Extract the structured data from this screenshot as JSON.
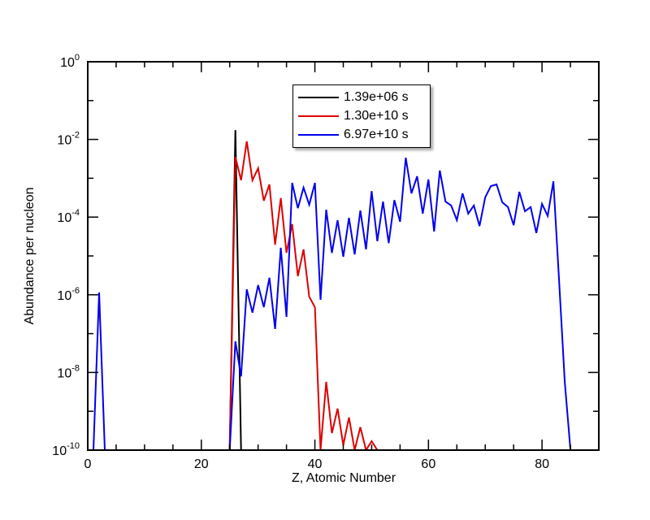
{
  "chart_data": {
    "type": "line",
    "title": "",
    "xlabel": "Z, Atomic Number",
    "ylabel": "Abundance per nucleon",
    "xlim": [
      0,
      90
    ],
    "ylim_log10": [
      -10,
      0
    ],
    "yscale": "log",
    "x_ticks": [
      0,
      20,
      40,
      60,
      80
    ],
    "x_minor_step": 5,
    "y_ticks_log10": [
      0,
      -2,
      -4,
      -6,
      -8,
      -10
    ],
    "y_tick_labels": [
      "10^0",
      "10^-2",
      "10^-4",
      "10^-6",
      "10^-8",
      "10^-10"
    ],
    "grid": false,
    "legend_position": "upper center",
    "series": [
      {
        "name": "1.39e+06 s",
        "color": "#000000",
        "x": [
          25,
          26,
          27
        ],
        "log10_y": [
          -10,
          -1.76,
          -10
        ]
      },
      {
        "name": "1.30e+10 s",
        "color": "#dd0000",
        "x": [
          25,
          26,
          27,
          28,
          29,
          30,
          31,
          32,
          33,
          34,
          35,
          36,
          37,
          38,
          39,
          40,
          41,
          42,
          43,
          44,
          45,
          46,
          47,
          48,
          49,
          50,
          51
        ],
        "log10_y": [
          -10,
          -2.45,
          -3.05,
          -2.05,
          -3.05,
          -2.74,
          -3.58,
          -3.16,
          -4.71,
          -3.51,
          -4.92,
          -4.18,
          -5.52,
          -4.83,
          -6.05,
          -6.32,
          -10,
          -8.24,
          -9.56,
          -8.93,
          -9.87,
          -9.16,
          -10,
          -9.41,
          -10,
          -9.77,
          -10
        ]
      },
      {
        "name": "6.97e+10 s",
        "color": "#0000ee",
        "x": [
          1,
          2,
          3,
          25,
          26,
          27,
          28,
          29,
          30,
          31,
          32,
          33,
          34,
          35,
          36,
          37,
          38,
          39,
          40,
          41,
          42,
          43,
          44,
          45,
          46,
          47,
          48,
          49,
          50,
          51,
          52,
          53,
          54,
          55,
          56,
          57,
          58,
          59,
          60,
          61,
          62,
          63,
          64,
          65,
          66,
          67,
          68,
          69,
          70,
          71,
          72,
          73,
          74,
          75,
          76,
          77,
          78,
          79,
          80,
          81,
          82,
          83,
          84,
          85
        ],
        "log10_y": [
          -10,
          -5.94,
          -10,
          -10,
          -7.2,
          -8.1,
          -5.86,
          -6.46,
          -5.75,
          -6.32,
          -5.56,
          -6.88,
          -4.79,
          -6.57,
          -3.12,
          -3.77,
          -3.24,
          -3.68,
          -3.12,
          -6.13,
          -3.81,
          -4.92,
          -4.08,
          -5.02,
          -4.02,
          -4.96,
          -3.83,
          -4.83,
          -3.33,
          -4.62,
          -3.6,
          -4.67,
          -3.56,
          -4.12,
          -2.47,
          -3.39,
          -2.95,
          -3.91,
          -3.03,
          -4.37,
          -2.8,
          -3.6,
          -3.7,
          -4.08,
          -3.39,
          -3.91,
          -3.7,
          -4.23,
          -3.49,
          -3.2,
          -3.16,
          -3.62,
          -3.74,
          -4.21,
          -3.35,
          -3.85,
          -3.74,
          -4.41,
          -3.66,
          -3.97,
          -3.08,
          -5.63,
          -8.24,
          -10
        ]
      }
    ]
  },
  "labels": {
    "xlabel": "Z, Atomic Number",
    "ylabel": "Abundance per nucleon"
  },
  "legend": [
    {
      "label": "1.39e+06 s",
      "color": "#000000"
    },
    {
      "label": "1.30e+10 s",
      "color": "#dd0000"
    },
    {
      "label": "6.97e+10 s",
      "color": "#0000ee"
    }
  ]
}
